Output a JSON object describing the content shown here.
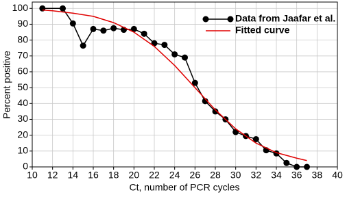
{
  "chart_data": {
    "type": "line",
    "xlabel": "Ct, number of PCR cycles",
    "ylabel": "Percent positive",
    "xlim": [
      10,
      40
    ],
    "xticks": [
      10,
      12,
      14,
      16,
      18,
      20,
      22,
      24,
      26,
      28,
      30,
      32,
      34,
      36,
      38,
      40
    ],
    "ylim": [
      0,
      104
    ],
    "yticks": [
      0,
      10,
      20,
      30,
      40,
      50,
      60,
      70,
      80,
      90,
      100
    ],
    "grid": true,
    "legend": "upper right",
    "series": [
      {
        "name": "Data from Jaafar et al.",
        "color": "#000000",
        "markers": true,
        "x": [
          11,
          13,
          14,
          15,
          16,
          17,
          18,
          19,
          20,
          21,
          22,
          23,
          24,
          25,
          26,
          27,
          28,
          29,
          30,
          31,
          32,
          33,
          34,
          35,
          36,
          37
        ],
        "values": [
          100,
          100,
          90.5,
          76.5,
          87,
          86,
          87.5,
          86.5,
          87,
          84,
          78,
          77,
          71,
          69,
          53,
          41.5,
          35,
          30,
          22,
          19.5,
          17.5,
          10.5,
          8.5,
          2.5,
          0,
          0
        ]
      },
      {
        "name": "Fitted curve",
        "color": "#e00000",
        "markers": false,
        "x": [
          11,
          12,
          14,
          16,
          18,
          20,
          22,
          24,
          26,
          28,
          30,
          32,
          34,
          36,
          37
        ],
        "values": [
          99,
          98.5,
          97,
          95,
          91,
          85,
          76,
          64,
          50,
          36,
          24,
          15,
          9,
          5.5,
          4
        ]
      }
    ]
  }
}
